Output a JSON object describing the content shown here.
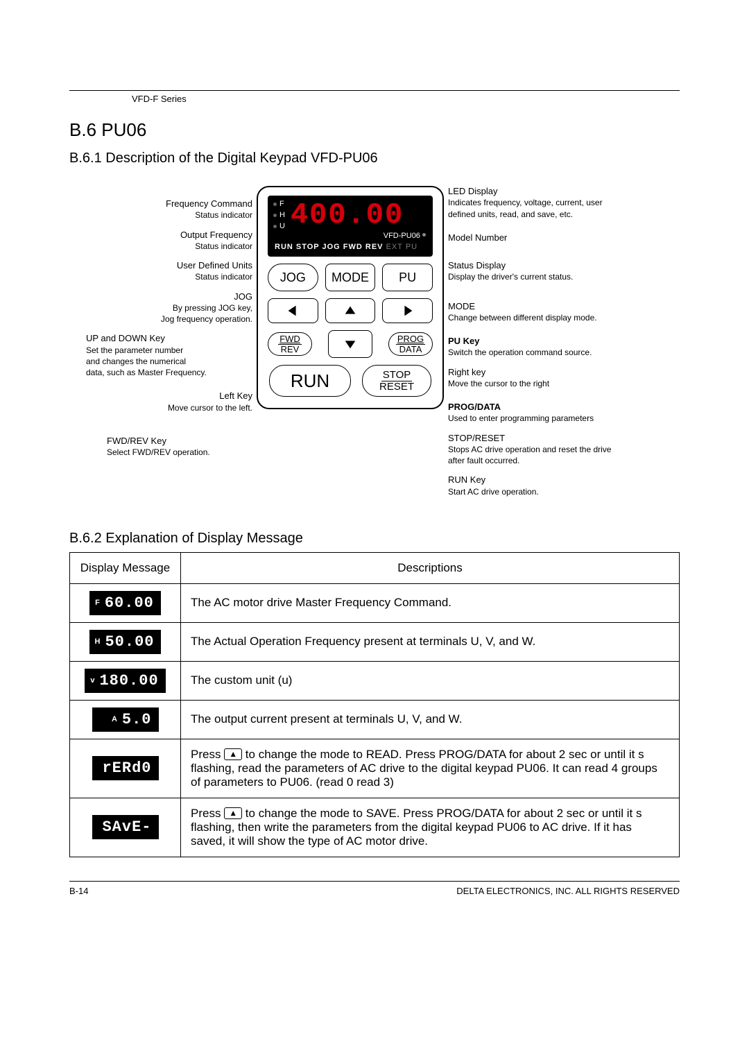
{
  "header": {
    "series": "VFD-F Series"
  },
  "section": {
    "num_title": "B.6 PU06"
  },
  "sub1": {
    "title": "B.6.1 Description of the Digital Keypad VFD-PU06"
  },
  "left_callouts": {
    "freq_cmd": {
      "t": "Frequency Command",
      "d": "Status indicator"
    },
    "out_freq": {
      "t": "Output Frequency",
      "d": "Status indicator"
    },
    "user_def": {
      "t": "User Defined Units",
      "d": "Status indicator"
    },
    "jog": {
      "t": "JOG",
      "d": "By pressing JOG key,\nJog frequency operation."
    },
    "updown": {
      "t": "UP and DOWN  Key",
      "d": "Set the parameter number\nand changes the numerical\ndata, such as Master Frequency."
    },
    "left_key": {
      "t": "Left Key",
      "d": "Move cursor to the left."
    },
    "fwdrev": {
      "t": "FWD/REV Key",
      "d": "Select FWD/REV operation."
    }
  },
  "right_callouts": {
    "led": {
      "t": "LED Display",
      "d": "Indicates frequency, voltage, current, user\ndefined units, read, and save, etc."
    },
    "model": {
      "t": "Model Number",
      "d": ""
    },
    "status": {
      "t": "Status Display",
      "d": "Display the driver's current status."
    },
    "mode": {
      "t": "MODE",
      "d": "Change between different display mode."
    },
    "pu": {
      "t": "PU Key",
      "d": "Switch the operation command source."
    },
    "right": {
      "t": "Right key",
      "d": "Move the cursor to the right"
    },
    "prog": {
      "t": "PROG/DATA",
      "d": "Used to enter programming parameters"
    },
    "stop": {
      "t": "STOP/RESET",
      "d": "Stops AC drive operation and reset the drive\nafter fault occurred."
    },
    "run": {
      "t": "RUN Key",
      "d": "Start  AC drive operation."
    }
  },
  "keypad": {
    "ind_f": "F",
    "ind_h": "H",
    "ind_u": "U",
    "seg_value": "400.00",
    "model": "VFD-PU06",
    "status_main": "RUN STOP JOG FWD REV",
    "status_ext": "EXT PU",
    "btn_jog": "JOG",
    "btn_mode": "MODE",
    "btn_pu": "PU",
    "btn_fwd": "FWD",
    "btn_rev": "REV",
    "btn_prog": "PROG",
    "btn_data": "DATA",
    "btn_run": "RUN",
    "btn_stop": "STOP",
    "btn_reset": "RESET"
  },
  "sub2": {
    "title": "B.6.2 Explanation of Display Message"
  },
  "table": {
    "col1": "Display Message",
    "col2": "Descriptions",
    "rows": [
      {
        "pre": "F",
        "disp": "60.00",
        "desc": "The AC motor drive Master Frequency Command."
      },
      {
        "pre": "H",
        "disp": "50.00",
        "desc": "The Actual Operation Frequency present at terminals U, V, and W."
      },
      {
        "pre": "v",
        "disp": "180.00",
        "desc": "The custom unit (u)"
      },
      {
        "pre": "A",
        "disp": "5.0",
        "desc": "The output current present at terminals U, V, and W."
      },
      {
        "pre": "",
        "disp": "rERd0",
        "desc": "Press ▲ to change the mode to READ. Press PROG/DATA for about 2 sec or until it s flashing, read the parameters of AC drive to the digital keypad PU06. It can read 4 groups of parameters to PU06. (read 0    read 3)"
      },
      {
        "pre": "",
        "disp": "SAvE-",
        "desc": "Press ▲ to change the mode to SAVE. Press PROG/DATA for about 2 sec or until it s flashing, then write the parameters from the digital keypad PU06 to AC drive. If it has saved, it will show the type of AC motor drive."
      }
    ]
  },
  "footer": {
    "page": "B-14",
    "copyright": "DELTA ELECTRONICS, INC. ALL RIGHTS RESERVED"
  },
  "icons": {
    "up_triangle": "▲"
  }
}
